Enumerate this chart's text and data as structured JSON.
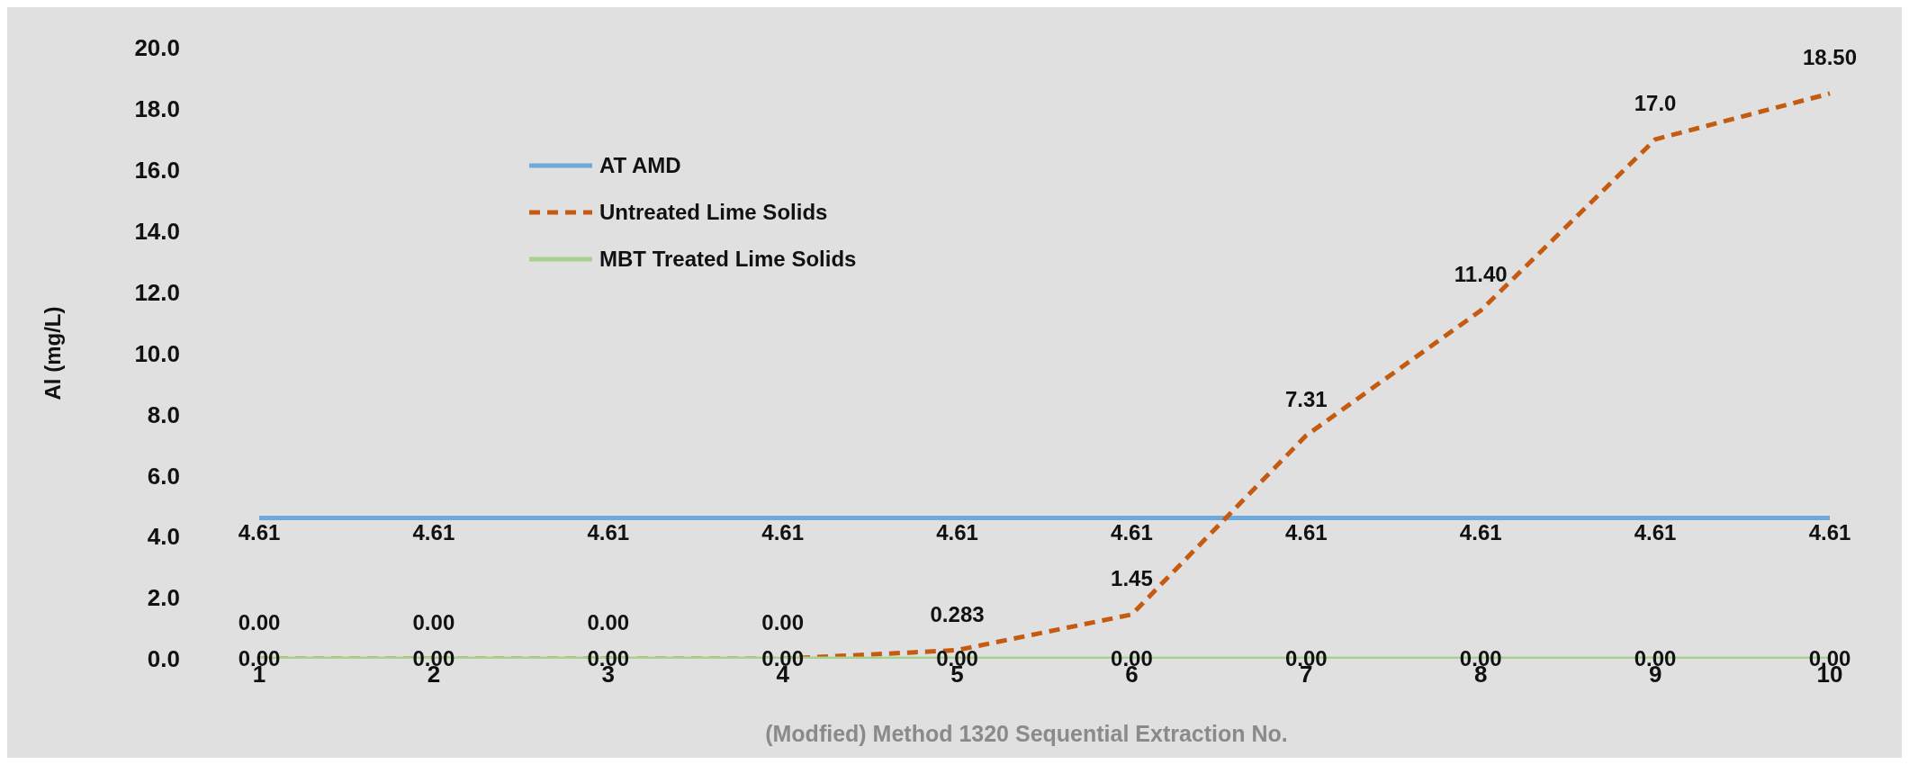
{
  "chart_data": {
    "type": "line",
    "xlabel": "(Modfied) Method 1320 Sequential Extraction No.",
    "ylabel": "Al (mg/L)",
    "categories": [
      "1",
      "2",
      "3",
      "4",
      "5",
      "6",
      "7",
      "8",
      "9",
      "10"
    ],
    "series": [
      {
        "name": "AT AMD",
        "color": "#6fa8dc",
        "line_style": "solid",
        "values": [
          4.61,
          4.61,
          4.61,
          4.61,
          4.61,
          4.61,
          4.61,
          4.61,
          4.61,
          4.61
        ],
        "value_labels": [
          "4.61",
          "4.61",
          "4.61",
          "4.61",
          "4.61",
          "4.61",
          "4.61",
          "4.61",
          "4.61",
          "4.61"
        ]
      },
      {
        "name": "Untreated Lime Solids",
        "color": "#c55a11",
        "line_style": "dashed",
        "values": [
          0,
          0,
          0,
          0,
          0.283,
          1.45,
          7.31,
          11.4,
          17.0,
          18.5
        ],
        "value_labels": [
          "0.00",
          "0.00",
          "0.00",
          "0.00",
          "0.283",
          "1.45",
          "7.31",
          "11.40",
          "17.0",
          "18.50"
        ]
      },
      {
        "name": "MBT Treated Lime Solids",
        "color": "#a9d18e",
        "line_style": "solid",
        "values": [
          0,
          0,
          0,
          0,
          0,
          0,
          0,
          0,
          0,
          0
        ],
        "value_labels": [
          "0.00",
          "0.00",
          "0.00",
          "0.00",
          "0.00",
          "0.00",
          "0.00",
          "0.00",
          "0.00",
          "0.00"
        ]
      }
    ],
    "ylim": [
      0,
      20
    ],
    "yticks": [
      {
        "value": 0,
        "label": "0.0"
      },
      {
        "value": 2,
        "label": "2.0"
      },
      {
        "value": 4,
        "label": "4.0"
      },
      {
        "value": 6,
        "label": "6.0"
      },
      {
        "value": 8,
        "label": "8.0"
      },
      {
        "value": 10,
        "label": "10.0"
      },
      {
        "value": 12,
        "label": "12.0"
      },
      {
        "value": 14,
        "label": "14.0"
      },
      {
        "value": 16,
        "label": "16.0"
      },
      {
        "value": 18,
        "label": "18.0"
      },
      {
        "value": 20,
        "label": "20.0"
      }
    ],
    "grid": false,
    "legend": "top left",
    "marker": "none"
  }
}
